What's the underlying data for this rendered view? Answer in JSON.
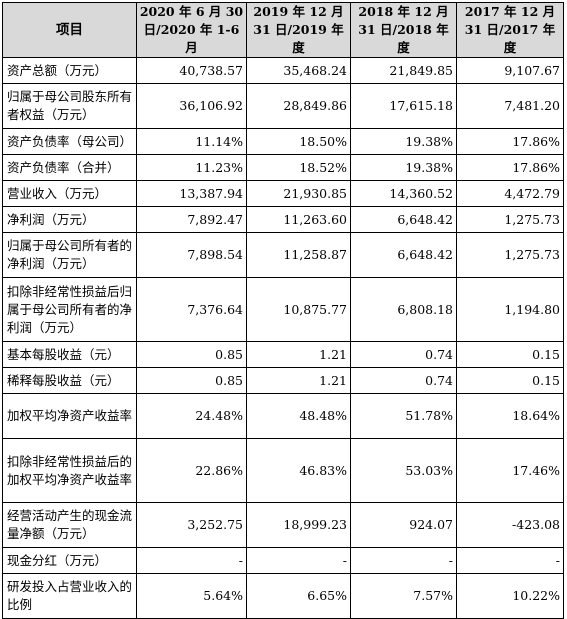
{
  "table": {
    "headers": [
      "项目",
      "2020 年 6 月 30 日/2020 年 1-6 月",
      "2019 年 12 月 31 日/2019 年度",
      "2018 年 12 月 31 日/2018 年度",
      "2017 年 12 月 31 日/2017 年度"
    ],
    "rows": [
      {
        "label": "资产总额（万元）",
        "values": [
          "40,738.57",
          "35,468.24",
          "21,849.85",
          "9,107.67"
        ]
      },
      {
        "label": "归属于母公司股东所有者权益（万元）",
        "values": [
          "36,106.92",
          "28,849.86",
          "17,615.18",
          "7,481.20"
        ]
      },
      {
        "label": "资产负债率（母公司）",
        "values": [
          "11.14%",
          "18.50%",
          "19.38%",
          "17.86%"
        ]
      },
      {
        "label": "资产负债率（合并）",
        "values": [
          "11.23%",
          "18.52%",
          "19.38%",
          "17.86%"
        ]
      },
      {
        "label": "营业收入（万元）",
        "values": [
          "13,387.94",
          "21,930.85",
          "14,360.52",
          "4,472.79"
        ]
      },
      {
        "label": "净利润（万元）",
        "values": [
          "7,892.47",
          "11,263.60",
          "6,648.42",
          "1,275.73"
        ]
      },
      {
        "label": "归属于母公司所有者的净利润（万元）",
        "values": [
          "7,898.54",
          "11,258.87",
          "6,648.42",
          "1,275.73"
        ]
      },
      {
        "label": "扣除非经常性损益后归属于母公司所有者的净利润（万元）",
        "values": [
          "7,376.64",
          "10,875.77",
          "6,808.18",
          "1,194.80"
        ]
      },
      {
        "label": "基本每股收益（元）",
        "values": [
          "0.85",
          "1.21",
          "0.74",
          "0.15"
        ]
      },
      {
        "label": "稀释每股收益（元）",
        "values": [
          "0.85",
          "1.21",
          "0.74",
          "0.15"
        ]
      },
      {
        "label": "加权平均净资产收益率",
        "values": [
          "24.48%",
          "48.48%",
          "51.78%",
          "18.64%"
        ]
      },
      {
        "label": "扣除非经常性损益后的加权平均净资产收益率",
        "values": [
          "22.86%",
          "46.83%",
          "53.03%",
          "17.46%"
        ]
      },
      {
        "label": "经营活动产生的现金流量净额（万元）",
        "values": [
          "3,252.75",
          "18,999.23",
          "924.07",
          "-423.08"
        ]
      },
      {
        "label": "现金分红（万元）",
        "values": [
          "-",
          "-",
          "-",
          "-"
        ]
      },
      {
        "label": "研发投入占营业收入的比例",
        "values": [
          "5.64%",
          "6.65%",
          "7.57%",
          "10.22%"
        ]
      }
    ]
  }
}
